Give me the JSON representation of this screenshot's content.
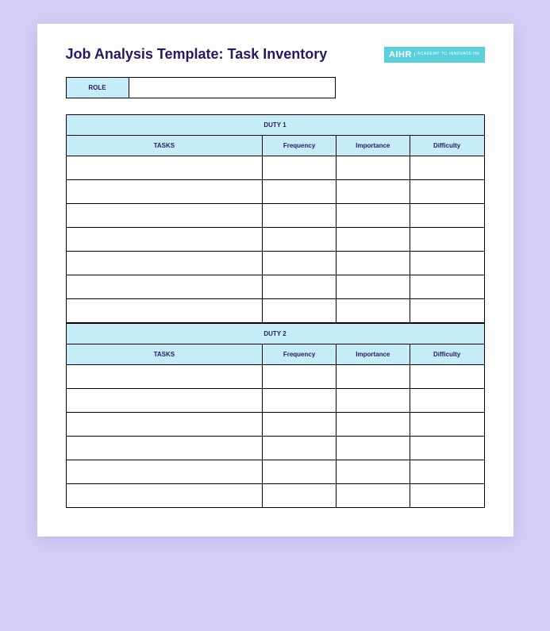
{
  "title": "Job Analysis Template: Task Inventory",
  "logo": {
    "main": "AIHR",
    "sub": "ACADEMY TO INNOVATE HR"
  },
  "role": {
    "label": "ROLE",
    "value": ""
  },
  "colors": {
    "page_bg": "#d4d0f5",
    "card_bg": "#ffffff",
    "header_fill": "#c5edf7",
    "text_dark": "#2b1761",
    "logo_bg": "#59d0de",
    "border": "#000000"
  },
  "duties": [
    {
      "header": "DUTY 1",
      "columns": [
        "TASKS",
        "Frequency",
        "Importance",
        "Difficulty"
      ],
      "rows": [
        [
          "",
          "",
          "",
          ""
        ],
        [
          "",
          "",
          "",
          ""
        ],
        [
          "",
          "",
          "",
          ""
        ],
        [
          "",
          "",
          "",
          ""
        ],
        [
          "",
          "",
          "",
          ""
        ],
        [
          "",
          "",
          "",
          ""
        ],
        [
          "",
          "",
          "",
          ""
        ]
      ]
    },
    {
      "header": "DUTY 2",
      "columns": [
        "TASKS",
        "Frequency",
        "Importance",
        "Difficulty"
      ],
      "rows": [
        [
          "",
          "",
          "",
          ""
        ],
        [
          "",
          "",
          "",
          ""
        ],
        [
          "",
          "",
          "",
          ""
        ],
        [
          "",
          "",
          "",
          ""
        ],
        [
          "",
          "",
          "",
          ""
        ],
        [
          "",
          "",
          "",
          ""
        ]
      ]
    }
  ]
}
